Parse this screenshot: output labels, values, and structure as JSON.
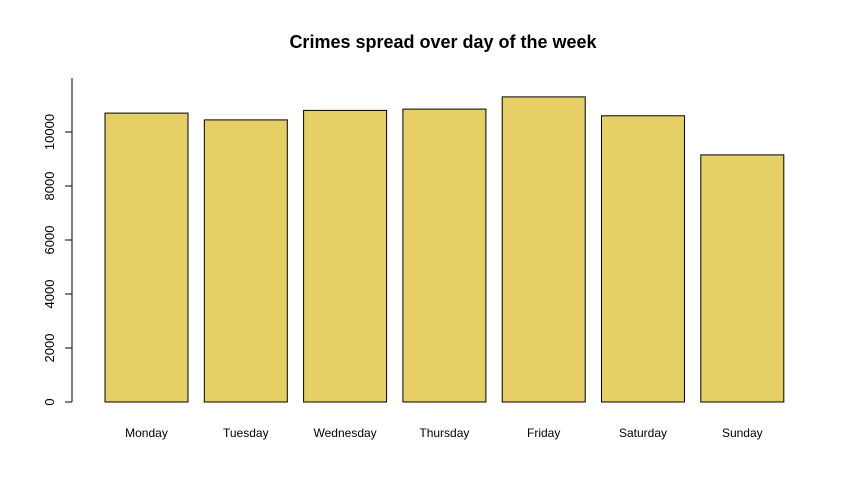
{
  "chart_data": {
    "type": "bar",
    "title": "Crimes spread over day of the week",
    "xlabel": "",
    "ylabel": "",
    "categories": [
      "Monday",
      "Tuesday",
      "Wednesday",
      "Thursday",
      "Friday",
      "Saturday",
      "Sunday"
    ],
    "values": [
      10700,
      10450,
      10800,
      10850,
      11300,
      10600,
      9150
    ],
    "ylim": [
      0,
      12000
    ],
    "y_ticks": [
      "0",
      "2000",
      "4000",
      "6000",
      "8000",
      "10000"
    ],
    "bar_color": "#E6D065",
    "grid": false,
    "legend": "none"
  }
}
